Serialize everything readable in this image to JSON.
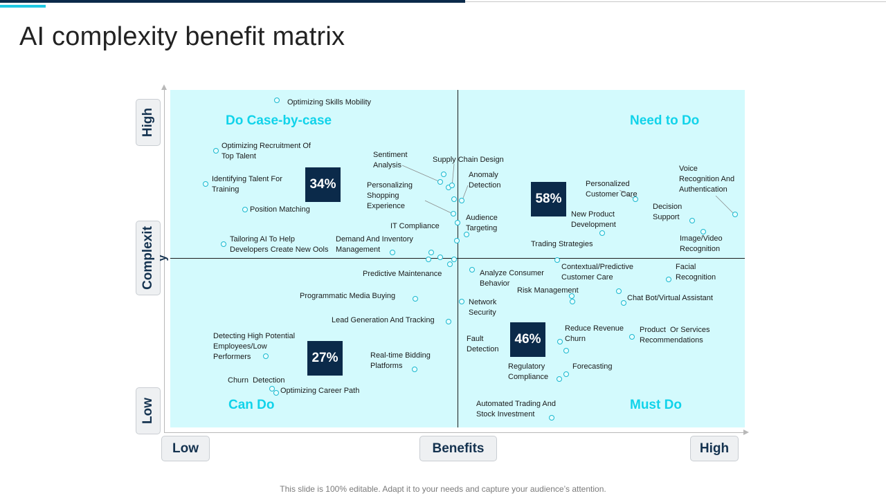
{
  "title": "AI complexity benefit matrix",
  "quadrants": {
    "top_left": "Do Case-by-case",
    "top_right": "Need to Do",
    "bottom_left": "Can Do",
    "bottom_right": "Must Do"
  },
  "percentages": {
    "top_left": "34%",
    "top_right": "58%",
    "bottom_left": "27%",
    "bottom_right": "46%"
  },
  "axes": {
    "x_low": "Low",
    "x_label": "Benefits",
    "x_high": "High",
    "y_high": "High",
    "y_label": "Complexit",
    "y_label_tail": "y",
    "y_low": "Low"
  },
  "items": [
    "Optimizing Skills Mobility",
    "Optimizing Recruitment Of\nTop Talent",
    "Identifying Talent For\nTraining",
    "Position Matching",
    "Tailoring AI To Help\nDevelopers Create New Ools",
    "Sentiment\nAnalysis",
    "Supply Chain Design",
    "Anomaly\nDetection",
    "Personalizing\nShopping\nExperience",
    "Audience\nTargeting",
    "IT Compliance",
    "Demand And Inventory\nManagement",
    "Predictive Maintenance",
    "Programmatic Media Buying",
    "Lead Generation And Tracking",
    "Detecting High Potential\nEmployees/Low\nPerformers",
    "Real-time Bidding\nPlatforms",
    "Churn  Detection",
    "Optimizing Career Path",
    "Personalized\nCustomer Care",
    "Voice\nRecognition And\nAuthentication",
    "Decision\nSupport",
    "New Product\nDevelopment",
    "Image/Video\nRecognition",
    "Trading Strategies",
    "Contextual/Predictive\nCustomer Care",
    "Facial\nRecognition",
    "Analyze Consumer\nBehavior",
    "Risk Management",
    "Chat Bot/Virtual Assistant",
    "Network\nSecurity",
    "Reduce Revenue\nChurn",
    "Product  Or Services\nRecommendations",
    "Fault\nDetection",
    "Regulatory\nCompliance",
    "Forecasting",
    "Automated Trading And\nStock Investment"
  ],
  "footer": "This slide is 100% editable. Adapt it to your needs and capture your audience’s attention.",
  "colors": {
    "plot_bg": "#d3fafd",
    "quadrant_label": "#11d3ea",
    "percent_box": "#0b2a4a",
    "axis_button_text": "#14324f",
    "point_ring": "#1ab8cf"
  }
}
